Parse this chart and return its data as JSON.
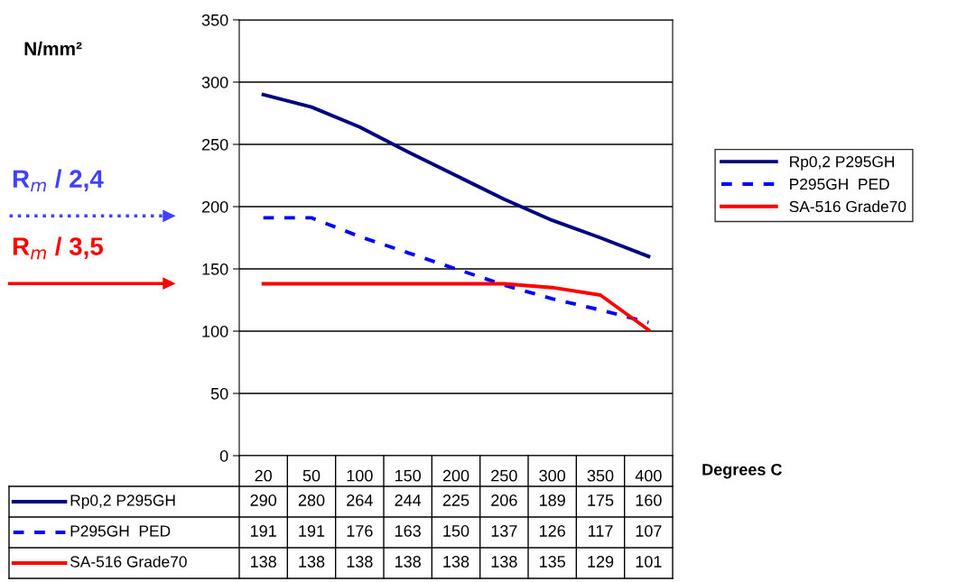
{
  "chart_data": {
    "type": "line",
    "xlabel": "Degrees C",
    "categories": [
      "20",
      "50",
      "100",
      "150",
      "200",
      "250",
      "300",
      "350",
      "400"
    ],
    "series": [
      {
        "name": "Rp0,2 P295GH",
        "color": "#000080",
        "line_style": "solid",
        "values": [
          290,
          280,
          264,
          244,
          225,
          206,
          189,
          175,
          160
        ]
      },
      {
        "name": "P295GH  PED",
        "color": "#0000ff",
        "line_style": "dashed",
        "values": [
          191,
          191,
          176,
          163,
          150,
          137,
          126,
          117,
          107
        ]
      },
      {
        "name": "SA-516 Grade70",
        "color": "#ff0000",
        "line_style": "solid",
        "values": [
          138,
          138,
          138,
          138,
          138,
          138,
          135,
          129,
          101
        ]
      }
    ],
    "ylim": [
      0,
      350
    ],
    "yticks": [
      0,
      50,
      100,
      150,
      200,
      250,
      300,
      350
    ],
    "grid": "y",
    "legend": "right",
    "marker": "none",
    "data_labels": true,
    "annotations": [
      "N/mm²",
      "R$_{m}$ / 2,4",
      "R$_{m}$ / 3,5"
    ]
  }
}
